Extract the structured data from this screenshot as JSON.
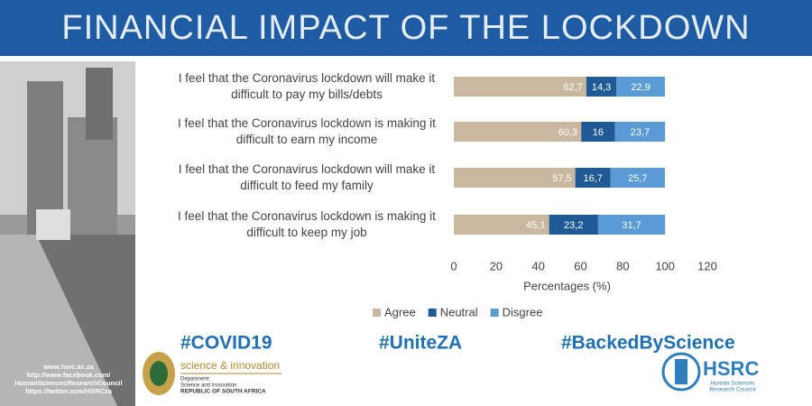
{
  "chart_data": {
    "type": "stacked-bar-horizontal",
    "title": "FINANCIAL IMPACT OF THE LOCKDOWN",
    "categories": [
      "I feel that the Coronavirus lockdown will make it difficult to pay my bills/debts",
      "I feel that the Coronavirus lockdown is making it difficult to earn my income",
      "I feel that the Coronavirus lockdown will make it difficult to feed my family",
      "I feel that the Coronavirus lockdown is making it difficult to keep my job"
    ],
    "series": [
      {
        "name": "Agree",
        "color": "#c9b89f",
        "values": [
          62.7,
          60.3,
          57.5,
          45.1
        ],
        "value_labels": [
          "62,7",
          "60,3",
          "57,5",
          "45,1"
        ]
      },
      {
        "name": "Neutral",
        "color": "#1d5a96",
        "values": [
          14.3,
          16,
          16.7,
          23.2
        ],
        "value_labels": [
          "14,3",
          "16",
          "16,7",
          "23,2"
        ]
      },
      {
        "name": "Disgree",
        "color": "#5b9bd5",
        "values": [
          22.9,
          23.7,
          25.7,
          31.7
        ],
        "value_labels": [
          "22,9",
          "23,7",
          "25,7",
          "31,7"
        ]
      }
    ],
    "xlim": [
      0,
      120
    ],
    "xticks": [
      0,
      20,
      40,
      60,
      80,
      100,
      120
    ],
    "xlabel": "Percentages (%)",
    "legend": "bottom"
  },
  "hashtags": [
    "#COVID19",
    "#UniteZA",
    "#BackedByScience"
  ],
  "links": [
    "www.hsrc.ac.za",
    "http://www.facebook.com/",
    "HumanSciencesResearchCouncil",
    "https://twitter.com/HSRCza"
  ],
  "dsi_logo": {
    "tagline": "science & innovation",
    "lines": [
      "Department:",
      "Science and Innovation",
      "REPUBLIC OF SOUTH AFRICA"
    ]
  },
  "hsrc_logo": {
    "name": "HSRC",
    "lines": [
      "Human Sciences",
      "Research Council"
    ]
  }
}
